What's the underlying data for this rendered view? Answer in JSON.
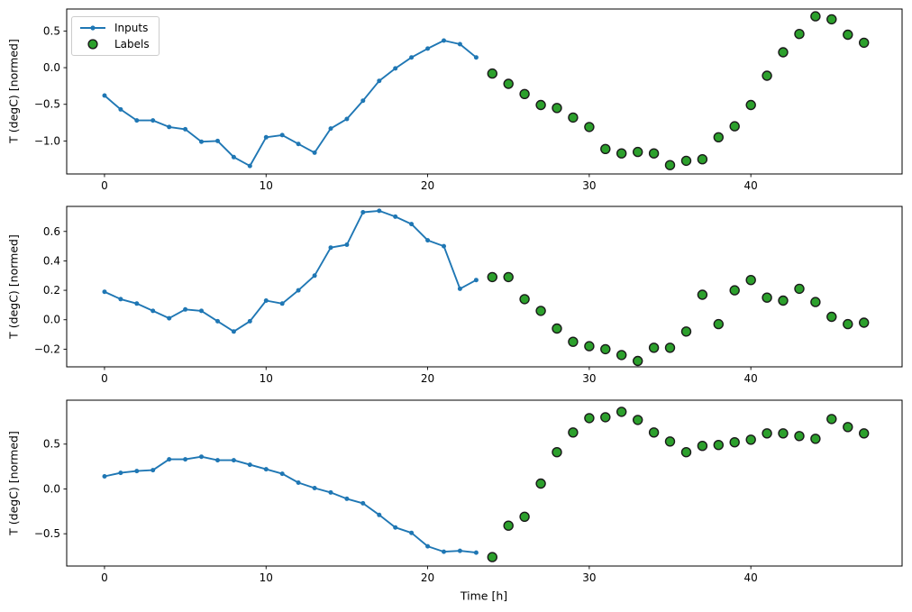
{
  "figure": {
    "xlabel": "Time [h]",
    "background": "#ffffff"
  },
  "legend": {
    "position": "upper left",
    "items": [
      {
        "label": "Inputs",
        "marker": "line-dot"
      },
      {
        "label": "Labels",
        "marker": "circle"
      }
    ]
  },
  "colors": {
    "inputs": "#1f77b4",
    "labels_fill": "#2ca02c",
    "labels_edge": "#1a1a1a",
    "axis": "#000000"
  },
  "chart_data": [
    {
      "type": "line+scatter",
      "ylabel": "T (degC) [normed]",
      "xlim": [
        -2.34,
        49.36
      ],
      "ylim": [
        -1.45,
        0.8
      ],
      "grid": false,
      "xticks": {
        "values": [
          0,
          10,
          20,
          30,
          40
        ],
        "labels": [
          "0",
          "10",
          "20",
          "30",
          "40"
        ]
      },
      "yticks": {
        "values": [
          0.5,
          0.0,
          -0.5,
          -1.0
        ],
        "labels": [
          "0.5",
          "0.0",
          "−0.5",
          "−1.0"
        ]
      },
      "series": [
        {
          "name": "Inputs",
          "type": "line",
          "x": [
            0,
            1,
            2,
            3,
            4,
            5,
            6,
            7,
            8,
            9,
            10,
            11,
            12,
            13,
            14,
            15,
            16,
            17,
            18,
            19,
            20,
            21,
            22,
            23
          ],
          "y": [
            -0.38,
            -0.57,
            -0.72,
            -0.72,
            -0.81,
            -0.84,
            -1.01,
            -1.0,
            -1.22,
            -1.34,
            -0.95,
            -0.92,
            -1.04,
            -1.16,
            -0.83,
            -0.7,
            -0.45,
            -0.18,
            -0.01,
            0.14,
            0.26,
            0.37,
            0.32,
            0.14
          ]
        },
        {
          "name": "Labels",
          "type": "scatter",
          "x": [
            24,
            25,
            26,
            27,
            28,
            29,
            30,
            31,
            32,
            33,
            34,
            35,
            36,
            37,
            38,
            39,
            40,
            41,
            42,
            43,
            44,
            45,
            46,
            47
          ],
          "y": [
            -0.08,
            -0.22,
            -0.36,
            -0.51,
            -0.55,
            -0.68,
            -0.81,
            -1.11,
            -1.17,
            -1.15,
            -1.17,
            -1.33,
            -1.27,
            -1.25,
            -0.95,
            -0.8,
            -0.51,
            -0.11,
            0.21,
            0.46,
            0.7,
            0.66,
            0.45,
            0.34
          ]
        }
      ]
    },
    {
      "type": "line+scatter",
      "ylabel": "T (degC) [normed]",
      "xlim": [
        -2.34,
        49.36
      ],
      "ylim": [
        -0.32,
        0.77
      ],
      "grid": false,
      "xticks": {
        "values": [
          0,
          10,
          20,
          30,
          40
        ],
        "labels": [
          "0",
          "10",
          "20",
          "30",
          "40"
        ]
      },
      "yticks": {
        "values": [
          0.6,
          0.4,
          0.2,
          0.0,
          -0.2
        ],
        "labels": [
          "0.6",
          "0.4",
          "0.2",
          "0.0",
          "−0.2"
        ]
      },
      "series": [
        {
          "name": "Inputs",
          "type": "line",
          "x": [
            0,
            1,
            2,
            3,
            4,
            5,
            6,
            7,
            8,
            9,
            10,
            11,
            12,
            13,
            14,
            15,
            16,
            17,
            18,
            19,
            20,
            21,
            22,
            23
          ],
          "y": [
            0.19,
            0.14,
            0.11,
            0.06,
            0.01,
            0.07,
            0.06,
            -0.01,
            -0.08,
            -0.01,
            0.13,
            0.11,
            0.2,
            0.3,
            0.49,
            0.51,
            0.73,
            0.74,
            0.7,
            0.65,
            0.54,
            0.5,
            0.21,
            0.27
          ]
        },
        {
          "name": "Labels",
          "type": "scatter",
          "x": [
            24,
            25,
            26,
            27,
            28,
            29,
            30,
            31,
            32,
            33,
            34,
            35,
            36,
            37,
            38,
            39,
            40,
            41,
            42,
            43,
            44,
            45,
            46,
            47
          ],
          "y": [
            0.29,
            0.29,
            0.14,
            0.06,
            -0.06,
            -0.15,
            -0.18,
            -0.2,
            -0.24,
            -0.28,
            -0.19,
            -0.19,
            -0.08,
            0.17,
            -0.03,
            0.2,
            0.27,
            0.15,
            0.13,
            0.21,
            0.12,
            0.02,
            -0.03,
            -0.02
          ]
        }
      ]
    },
    {
      "type": "line+scatter",
      "ylabel": "T (degC) [normed]",
      "xlim": [
        -2.34,
        49.36
      ],
      "ylim": [
        -0.86,
        0.99
      ],
      "grid": false,
      "xticks": {
        "values": [
          0,
          10,
          20,
          30,
          40
        ],
        "labels": [
          "0",
          "10",
          "20",
          "30",
          "40"
        ]
      },
      "yticks": {
        "values": [
          0.5,
          0.0,
          -0.5
        ],
        "labels": [
          "0.5",
          "0.0",
          "−0.5"
        ]
      },
      "series": [
        {
          "name": "Inputs",
          "type": "line",
          "x": [
            0,
            1,
            2,
            3,
            4,
            5,
            6,
            7,
            8,
            9,
            10,
            11,
            12,
            13,
            14,
            15,
            16,
            17,
            18,
            19,
            20,
            21,
            22,
            23
          ],
          "y": [
            0.14,
            0.18,
            0.2,
            0.21,
            0.33,
            0.33,
            0.36,
            0.32,
            0.32,
            0.27,
            0.22,
            0.17,
            0.07,
            0.01,
            -0.04,
            -0.11,
            -0.16,
            -0.29,
            -0.43,
            -0.49,
            -0.64,
            -0.7,
            -0.69,
            -0.71
          ]
        },
        {
          "name": "Labels",
          "type": "scatter",
          "x": [
            24,
            25,
            26,
            27,
            28,
            29,
            30,
            31,
            32,
            33,
            34,
            35,
            36,
            37,
            38,
            39,
            40,
            41,
            42,
            43,
            44,
            45,
            46,
            47
          ],
          "y": [
            -0.76,
            -0.41,
            -0.31,
            0.06,
            0.41,
            0.63,
            0.79,
            0.8,
            0.86,
            0.77,
            0.63,
            0.53,
            0.41,
            0.48,
            0.49,
            0.52,
            0.55,
            0.62,
            0.62,
            0.59,
            0.56,
            0.78,
            0.69,
            0.62
          ]
        }
      ]
    }
  ]
}
